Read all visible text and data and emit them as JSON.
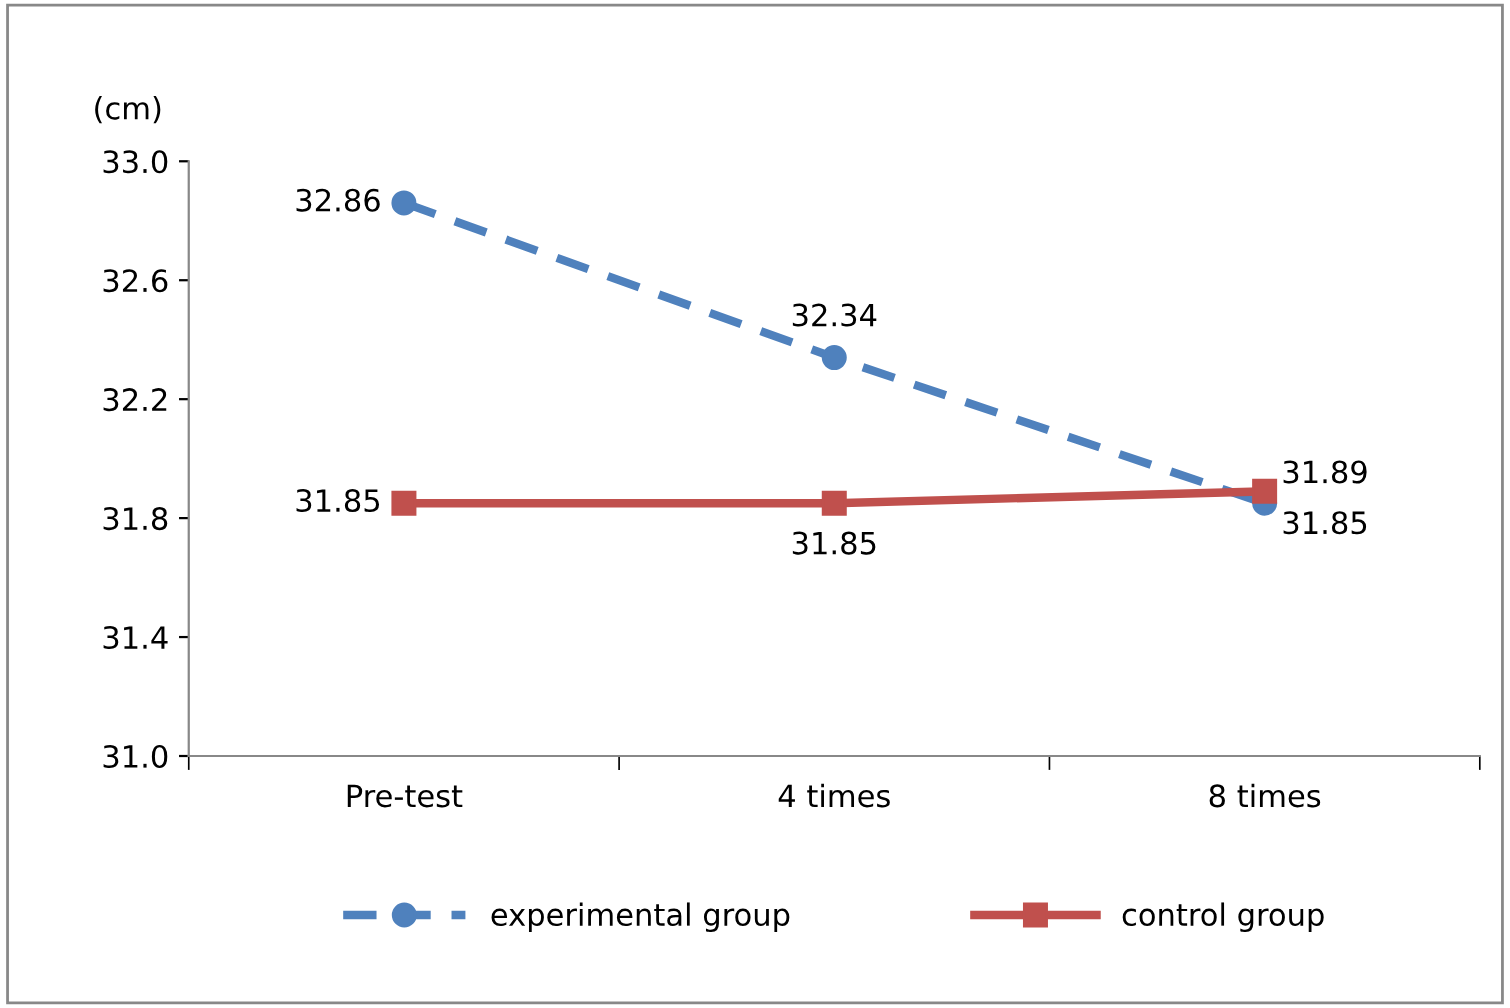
{
  "chart_data": {
    "type": "line",
    "ylabel": "(cm)",
    "categories": [
      "Pre-test",
      "4 times",
      "8 times"
    ],
    "series": [
      {
        "name": "experimental group",
        "color": "#4f81bd",
        "values": [
          32.86,
          32.34,
          31.85
        ],
        "marker": "circle",
        "line_style": "dashed"
      },
      {
        "name": "control group",
        "color": "#c0504d",
        "values": [
          31.85,
          31.85,
          31.89
        ],
        "marker": "square",
        "line_style": "solid"
      }
    ],
    "ylim": [
      31.0,
      33.0
    ],
    "yticks": [
      {
        "value": 31.0,
        "label": "31.0"
      },
      {
        "value": 31.4,
        "label": "31.4"
      },
      {
        "value": 31.8,
        "label": "31.8"
      },
      {
        "value": 32.2,
        "label": "32.2"
      },
      {
        "value": 32.6,
        "label": "32.6"
      },
      {
        "value": 33.0,
        "label": "33.0"
      }
    ],
    "data_labels": true,
    "grid": false,
    "legend": "bottom"
  }
}
